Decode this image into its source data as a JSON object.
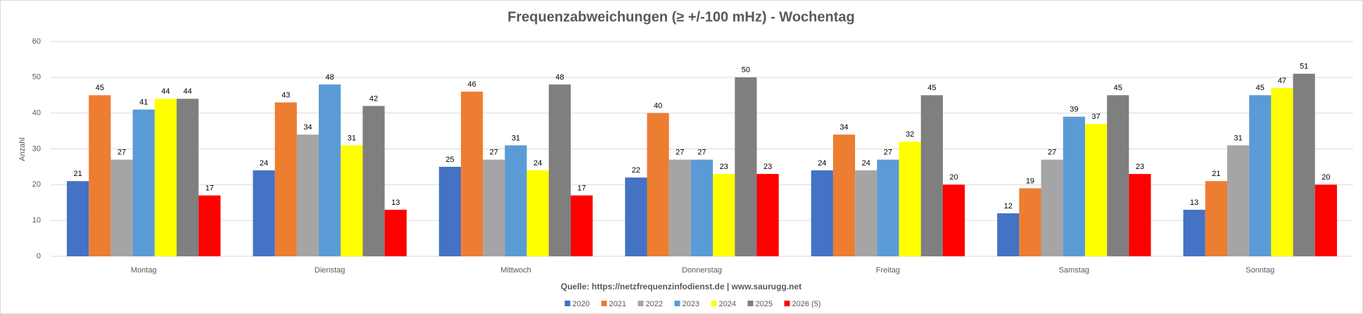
{
  "chart_data": {
    "type": "bar",
    "title": "Frequenzabweichungen (≥ +/-100 mHz) - Wochentag",
    "y_label": "Anzahl",
    "source": "Quelle: https://netzfrequenzinfodienst.de | www.saurugg.net",
    "categories": [
      "Montag",
      "Dienstag",
      "Mittwoch",
      "Donnerstag",
      "Freitag",
      "Samstag",
      "Sonntag"
    ],
    "series": [
      {
        "name": "2020",
        "color": "#4472c4",
        "values": [
          21,
          24,
          25,
          22,
          24,
          12,
          13
        ]
      },
      {
        "name": "2021",
        "color": "#ed7d31",
        "values": [
          45,
          43,
          46,
          40,
          34,
          19,
          21
        ]
      },
      {
        "name": "2022",
        "color": "#a5a5a5",
        "values": [
          27,
          34,
          27,
          27,
          24,
          27,
          31
        ]
      },
      {
        "name": "2023",
        "color": "#5b9bd5",
        "values": [
          41,
          48,
          31,
          27,
          27,
          39,
          45
        ]
      },
      {
        "name": "2024",
        "color": "#ffff00",
        "values": [
          44,
          31,
          24,
          23,
          32,
          37,
          47
        ]
      },
      {
        "name": "2025",
        "color": "#7f7f7f",
        "values": [
          44,
          42,
          48,
          50,
          45,
          45,
          51
        ]
      },
      {
        "name": "2026 (5)",
        "color": "#ff0000",
        "values": [
          17,
          13,
          17,
          23,
          20,
          23,
          20
        ]
      }
    ],
    "ylim": [
      0,
      60
    ],
    "yticks": [
      0,
      10,
      20,
      30,
      40,
      50,
      60
    ],
    "grid": true,
    "legend": "bottom"
  }
}
